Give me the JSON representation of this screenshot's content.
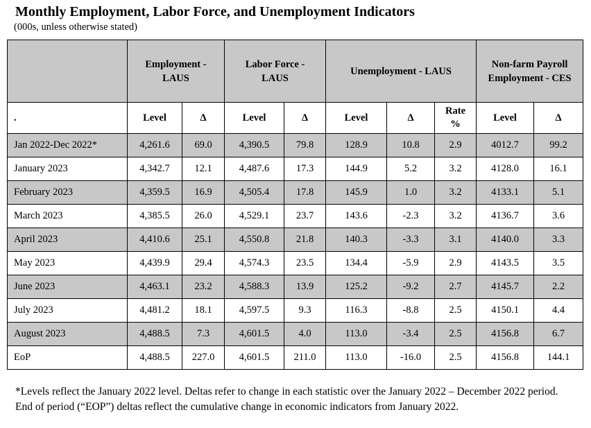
{
  "page": {
    "title": "Monthly Employment, Labor Force, and Unemployment Indicators",
    "subtitle": "(000s, unless otherwise stated)",
    "footnote": "*Levels reflect the January 2022 level. Deltas refer to change in each statistic over the January 2022 – December 2022 period. End of period (“EOP”) deltas reflect the cumulative change in economic indicators from January 2022."
  },
  "table": {
    "colors": {
      "shaded_bg": "#c8c8c8",
      "border": "#000000"
    },
    "group_headers": [
      {
        "label": "",
        "span": 1
      },
      {
        "label": "Employment - LAUS",
        "span": 2
      },
      {
        "label": "Labor Force - LAUS",
        "span": 2
      },
      {
        "label": "Unemployment - LAUS",
        "span": 3
      },
      {
        "label": "Non-farm Payroll Employment - CES",
        "span": 2
      }
    ],
    "sub_headers": [
      ".",
      "Level",
      "Δ",
      "Level",
      "Δ",
      "Level",
      "Δ",
      "Rate %",
      "Level",
      "Δ"
    ],
    "rows": [
      {
        "period": "Jan 2022-Dec 2022*",
        "shaded": true,
        "values": [
          "4,261.6",
          "69.0",
          "4,390.5",
          "79.8",
          "128.9",
          "10.8",
          "2.9",
          "4012.7",
          "99.2"
        ]
      },
      {
        "period": "January 2023",
        "shaded": false,
        "values": [
          "4,342.7",
          "12.1",
          "4,487.6",
          "17.3",
          "144.9",
          "5.2",
          "3.2",
          "4128.0",
          "16.1"
        ]
      },
      {
        "period": "February 2023",
        "shaded": true,
        "values": [
          "4,359.5",
          "16.9",
          "4,505.4",
          "17.8",
          "145.9",
          "1.0",
          "3.2",
          "4133.1",
          "5.1"
        ]
      },
      {
        "period": "March 2023",
        "shaded": false,
        "values": [
          "4,385.5",
          "26.0",
          "4,529.1",
          "23.7",
          "143.6",
          "-2.3",
          "3.2",
          "4136.7",
          "3.6"
        ]
      },
      {
        "period": "April 2023",
        "shaded": true,
        "values": [
          "4,410.6",
          "25.1",
          "4,550.8",
          "21.8",
          "140.3",
          "-3.3",
          "3.1",
          "4140.0",
          "3.3"
        ]
      },
      {
        "period": "May 2023",
        "shaded": false,
        "values": [
          "4,439.9",
          "29.4",
          "4,574.3",
          "23.5",
          "134.4",
          "-5.9",
          "2.9",
          "4143.5",
          "3.5"
        ]
      },
      {
        "period": "June 2023",
        "shaded": true,
        "values": [
          "4,463.1",
          "23.2",
          "4,588.3",
          "13.9",
          "125.2",
          "-9.2",
          "2.7",
          "4145.7",
          "2.2"
        ]
      },
      {
        "period": "July 2023",
        "shaded": false,
        "values": [
          "4,481.2",
          "18.1",
          "4,597.5",
          "9.3",
          "116.3",
          "-8.8",
          "2.5",
          "4150.1",
          "4.4"
        ]
      },
      {
        "period": "August 2023",
        "shaded": true,
        "values": [
          "4,488.5",
          "7.3",
          "4,601.5",
          "4.0",
          "113.0",
          "-3.4",
          "2.5",
          "4156.8",
          "6.7"
        ]
      },
      {
        "period": "EoP",
        "shaded": false,
        "values": [
          "4,488.5",
          "227.0",
          "4,601.5",
          "211.0",
          "113.0",
          "-16.0",
          "2.5",
          "4156.8",
          "144.1"
        ]
      }
    ]
  }
}
